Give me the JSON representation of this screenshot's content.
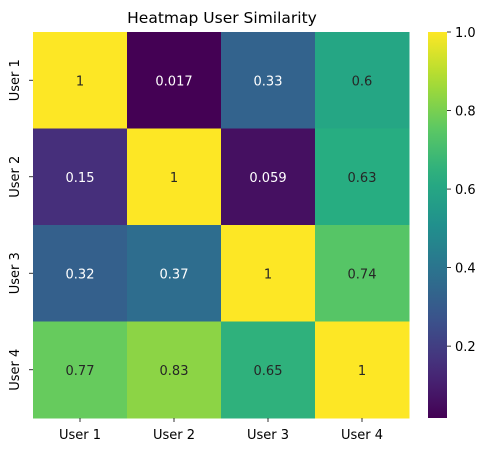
{
  "chart_data": {
    "type": "heatmap",
    "title": "Heatmap User Similarity",
    "x_categories": [
      "User 1",
      "User 2",
      "User 3",
      "User 4"
    ],
    "y_categories": [
      "User 1",
      "User 2",
      "User 3",
      "User 4"
    ],
    "values": [
      [
        1,
        0.017,
        0.33,
        0.6
      ],
      [
        0.15,
        1,
        0.059,
        0.63
      ],
      [
        0.32,
        0.37,
        1,
        0.74
      ],
      [
        0.77,
        0.83,
        0.65,
        1
      ]
    ],
    "cell_labels": [
      [
        "1",
        "0.017",
        "0.33",
        "0.6"
      ],
      [
        "0.15",
        "1",
        "0.059",
        "0.63"
      ],
      [
        "0.32",
        "0.37",
        "1",
        "0.74"
      ],
      [
        "0.77",
        "0.83",
        "0.65",
        "1"
      ]
    ],
    "colorbar": {
      "colormap": "viridis",
      "range": [
        0.017,
        1.0
      ],
      "ticks": [
        0.2,
        0.4,
        0.6,
        0.8,
        1.0
      ],
      "tick_labels": [
        "0.2",
        "0.4",
        "0.6",
        "0.8",
        "1.0"
      ]
    }
  }
}
